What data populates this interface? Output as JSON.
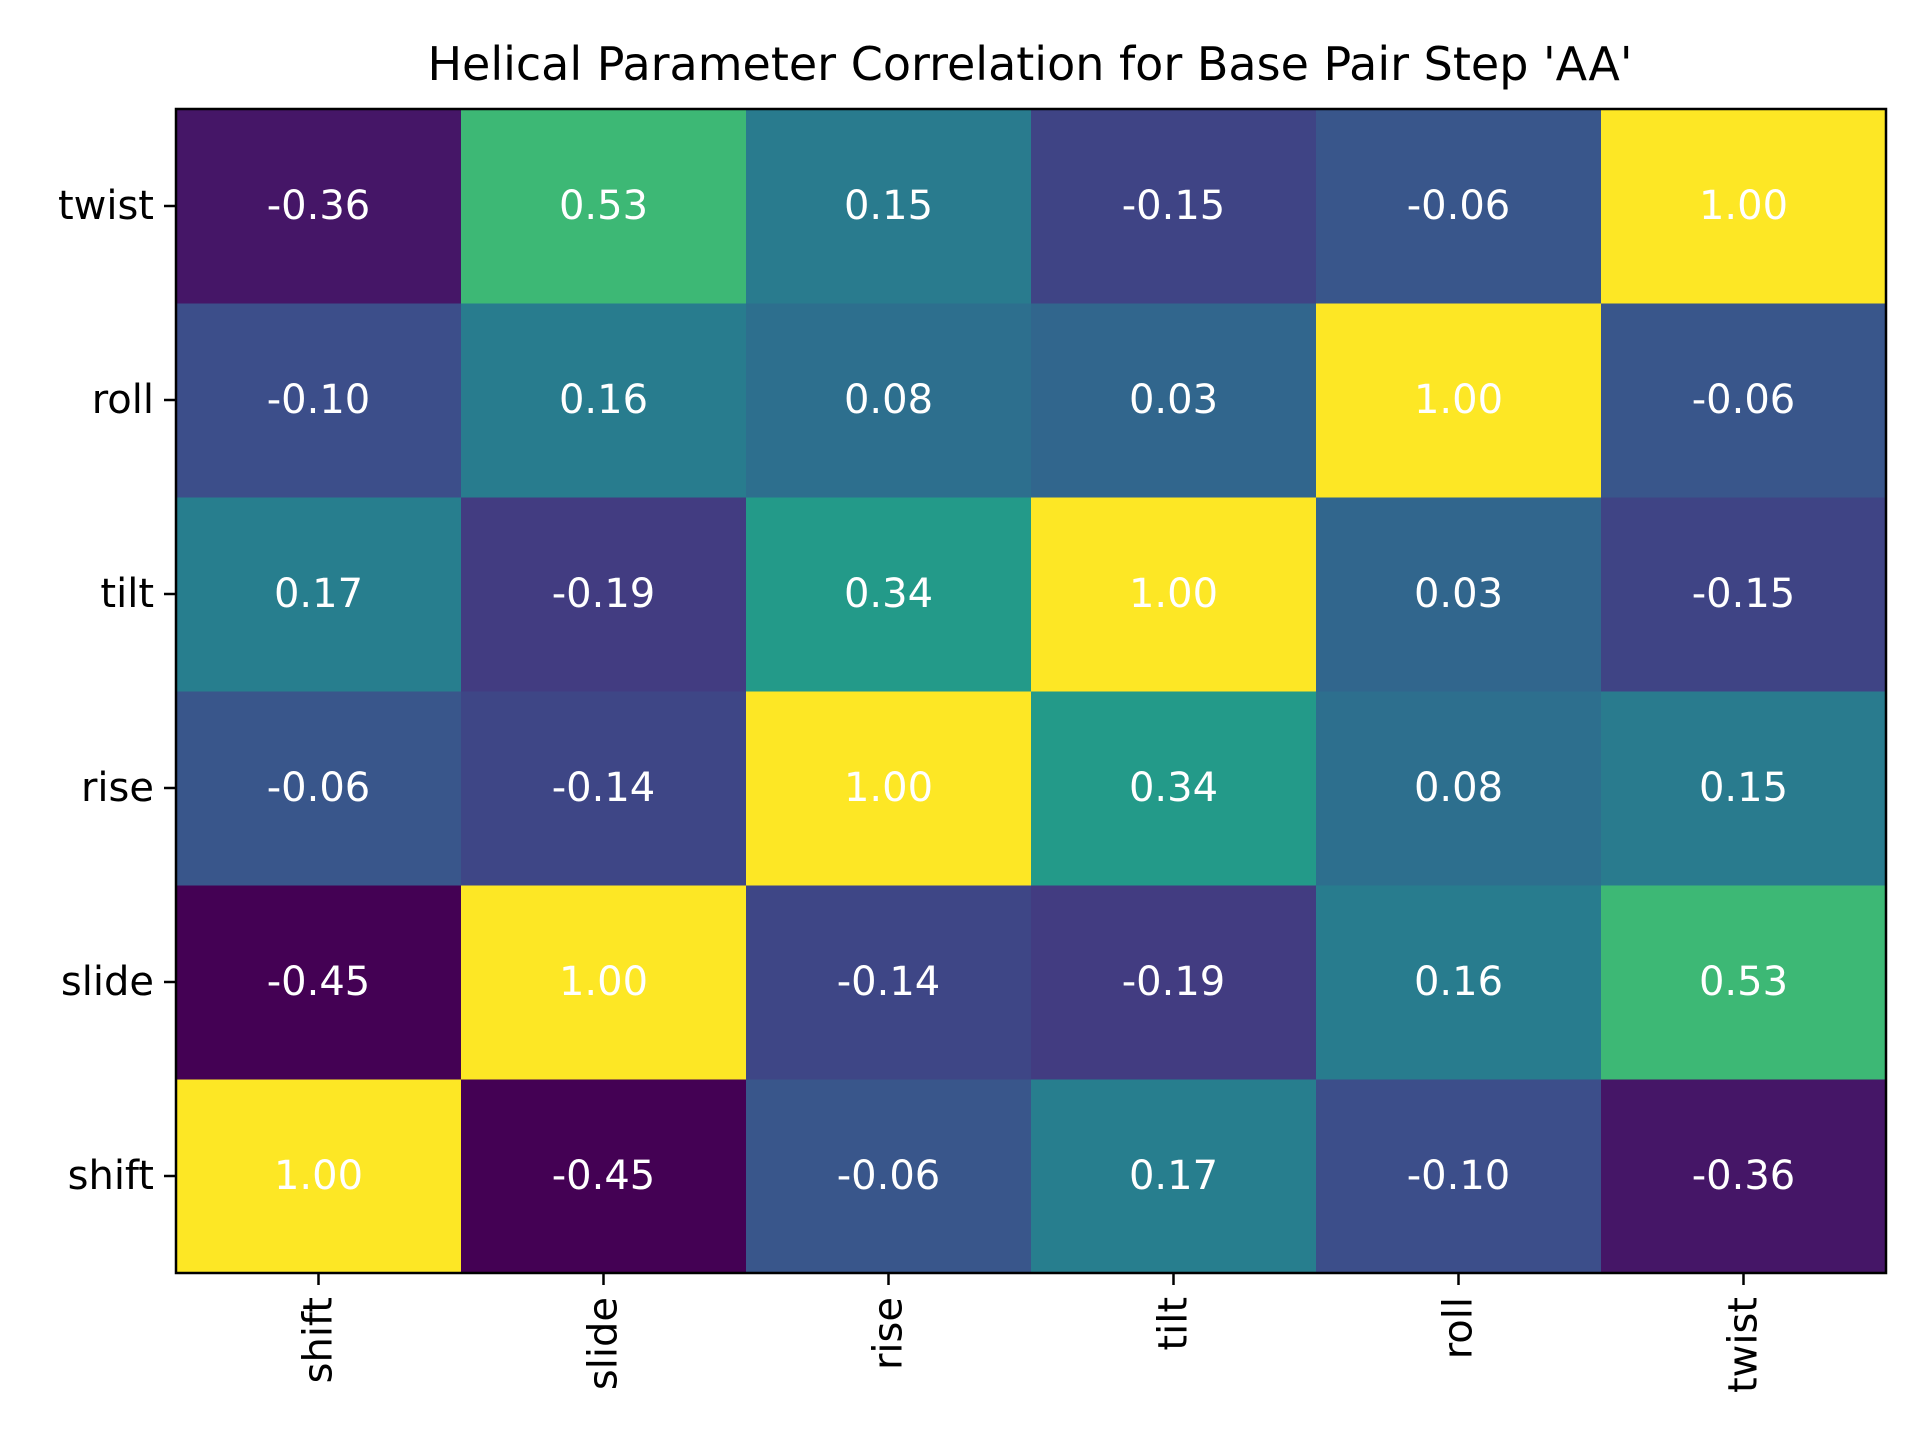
{
  "chart_data": {
    "type": "heatmap",
    "title": "Helical Parameter Correlation for Base Pair Step 'AA'",
    "x_labels": [
      "shift",
      "slide",
      "rise",
      "tilt",
      "roll",
      "twist"
    ],
    "y_labels": [
      "shift",
      "slide",
      "rise",
      "tilt",
      "roll",
      "twist"
    ],
    "y_order": "bottom-to-top",
    "values": [
      [
        1.0,
        -0.45,
        -0.06,
        0.17,
        -0.1,
        -0.36
      ],
      [
        -0.45,
        1.0,
        -0.14,
        -0.19,
        0.16,
        0.53
      ],
      [
        -0.06,
        -0.14,
        1.0,
        0.34,
        0.08,
        0.15
      ],
      [
        0.17,
        -0.19,
        0.34,
        1.0,
        0.03,
        -0.15
      ],
      [
        -0.1,
        0.16,
        0.08,
        0.03,
        1.0,
        -0.06
      ],
      [
        -0.36,
        0.53,
        0.15,
        -0.15,
        -0.06,
        1.0
      ]
    ],
    "cell_labels": [
      [
        "1.00",
        "-0.45",
        "-0.06",
        "0.17",
        "-0.10",
        "-0.36"
      ],
      [
        "-0.45",
        "1.00",
        "-0.14",
        "-0.19",
        "0.16",
        "0.53"
      ],
      [
        "-0.06",
        "-0.14",
        "1.00",
        "0.34",
        "0.08",
        "0.15"
      ],
      [
        "0.17",
        "-0.19",
        "0.34",
        "1.00",
        "0.03",
        "-0.15"
      ],
      [
        "-0.10",
        "0.16",
        "0.08",
        "0.03",
        "1.00",
        "-0.06"
      ],
      [
        "-0.36",
        "0.53",
        "0.15",
        "-0.15",
        "-0.06",
        "1.00"
      ]
    ],
    "colormap": "viridis",
    "vmin": -0.45,
    "vmax": 1.0,
    "cell_text_color": "#ffffff",
    "colorbar": false,
    "grid": false,
    "legend": "none"
  }
}
